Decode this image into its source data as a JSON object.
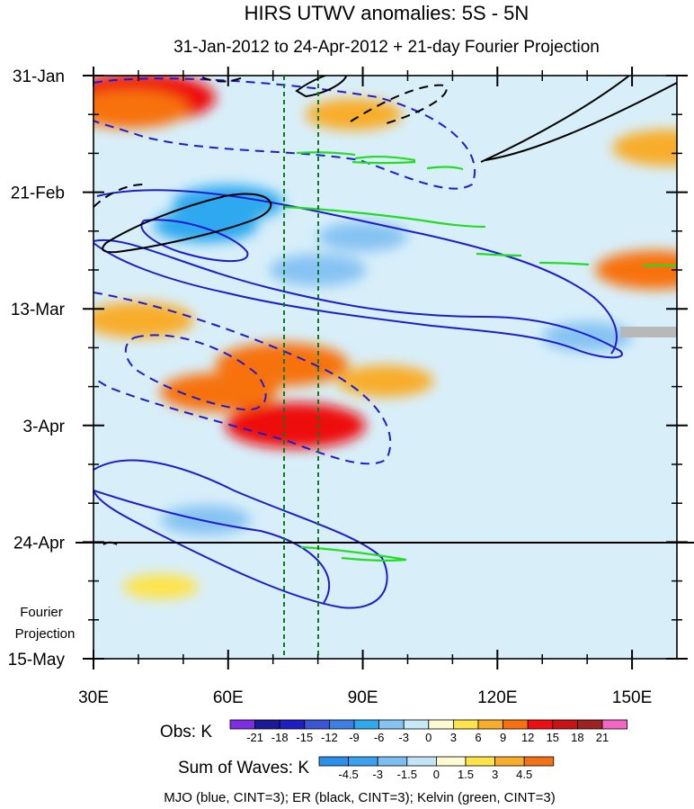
{
  "chart_data": {
    "type": "heatmap",
    "title": "HIRS UTWV anomalies: 5S - 5N",
    "subtitle": "31-Jan-2012 to 24-Apr-2012 + 21-day Fourier Projection",
    "x_axis": {
      "label": "",
      "range": [
        30,
        160
      ],
      "ticks": [
        30,
        60,
        90,
        120,
        150
      ],
      "tick_labels": [
        "30E",
        "60E",
        "90E",
        "120E",
        "150E"
      ]
    },
    "y_axis": {
      "label": "",
      "ticks": [
        "31-Jan",
        "21-Feb",
        "13-Mar",
        "3-Apr",
        "24-Apr",
        "15-May"
      ],
      "tick_day_offsets": [
        0,
        21,
        42,
        63,
        84,
        105
      ]
    },
    "projection_label": "Fourier Projection",
    "projection_start_day": 84,
    "vertical_reference_lines_lon": [
      72,
      80
    ],
    "obs_colorbar": {
      "label": "Obs: K",
      "levels": [
        -21,
        -18,
        -15,
        -12,
        -9,
        -6,
        -3,
        0,
        3,
        6,
        9,
        12,
        15,
        18,
        21
      ],
      "colors": [
        "#7d2ee0",
        "#1b1b99",
        "#1f1fc4",
        "#3a55d6",
        "#3f7fe3",
        "#2fa8ee",
        "#86c3f3",
        "#c6e8f7",
        "#fefbd2",
        "#fee34a",
        "#f8ad2b",
        "#f7720f",
        "#ee1010",
        "#c81414",
        "#9e2222",
        "#f466c4"
      ]
    },
    "waves_colorbar": {
      "label": "Sum of Waves: K",
      "levels": [
        -4.5,
        -3,
        -1.5,
        0,
        1.5,
        3,
        4.5
      ],
      "colors": [
        "#2c8fea",
        "#3aa0ef",
        "#7cbef2",
        "#c3e3f6",
        "#fefbd2",
        "#fee34a",
        "#f8ad2b",
        "#f37314"
      ]
    },
    "filled_anomalies": [
      {
        "lon": 40,
        "day": 4,
        "value": 14
      },
      {
        "lon": 38,
        "day": 6,
        "value": 9
      },
      {
        "lon": 88,
        "day": 7,
        "value": 6
      },
      {
        "lon": 158,
        "day": 13,
        "value": 8
      },
      {
        "lon": 155,
        "day": 35,
        "value": 9
      },
      {
        "lon": 60,
        "day": 23,
        "value": -8
      },
      {
        "lon": 55,
        "day": 27,
        "value": -7
      },
      {
        "lon": 90,
        "day": 29,
        "value": -5
      },
      {
        "lon": 80,
        "day": 35,
        "value": -6
      },
      {
        "lon": 40,
        "day": 44,
        "value": 8
      },
      {
        "lon": 72,
        "day": 52,
        "value": 11
      },
      {
        "lon": 58,
        "day": 57,
        "value": 9
      },
      {
        "lon": 75,
        "day": 63,
        "value": 12
      },
      {
        "lon": 95,
        "day": 55,
        "value": 6
      },
      {
        "lon": 55,
        "day": 80,
        "value": -5
      },
      {
        "lon": 140,
        "day": 47,
        "value": -5
      },
      {
        "lon": 45,
        "day": 92,
        "value": 3
      }
    ],
    "mjo_contours_blue": [
      {
        "sign": "negative",
        "label": "MJO -3 (dashed)",
        "value": -3
      },
      {
        "sign": "positive",
        "label": "MJO +3 (solid)",
        "value": 3
      }
    ],
    "er_contours_black": [
      {
        "sign": "positive",
        "label": "ER +3",
        "value": 3
      },
      {
        "sign": "negative",
        "label": "ER -3",
        "value": -3
      }
    ],
    "kelvin_contours_green": [
      {
        "sign": "positive",
        "label": "Kelvin +3",
        "value": 3
      }
    ],
    "legend_caption": "MJO (blue, CINT=3); ER (black, CINT=3); Kelvin (green, CINT=3)"
  }
}
